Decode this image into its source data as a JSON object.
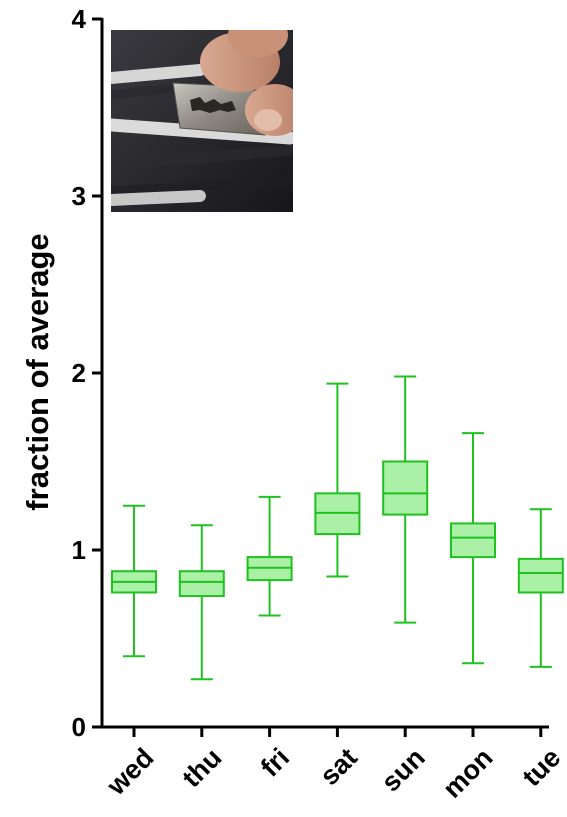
{
  "chart_data": {
    "type": "box",
    "ylabel": "fraction of average",
    "xlabel": "",
    "ylim": [
      0,
      4
    ],
    "yticks": [
      "0",
      "1",
      "2",
      "3",
      "4"
    ],
    "categories": [
      "wed",
      "thu",
      "fri",
      "sat",
      "sun",
      "mon",
      "tue"
    ],
    "boxes": [
      {
        "min": 0.4,
        "q1": 0.76,
        "median": 0.82,
        "q3": 0.88,
        "max": 1.25
      },
      {
        "min": 0.27,
        "q1": 0.74,
        "median": 0.82,
        "q3": 0.88,
        "max": 1.14
      },
      {
        "min": 0.63,
        "q1": 0.83,
        "median": 0.9,
        "q3": 0.96,
        "max": 1.3
      },
      {
        "min": 0.85,
        "q1": 1.09,
        "median": 1.21,
        "q3": 1.32,
        "max": 1.94
      },
      {
        "min": 0.59,
        "q1": 1.2,
        "median": 1.32,
        "q3": 1.5,
        "max": 1.98
      },
      {
        "min": 0.36,
        "q1": 0.96,
        "median": 1.07,
        "q3": 1.15,
        "max": 1.66
      },
      {
        "min": 0.34,
        "q1": 0.76,
        "median": 0.87,
        "q3": 0.95,
        "max": 1.23
      }
    ],
    "box_fill": "#aaf0a6",
    "box_stroke": "#1fc21f",
    "grid": false,
    "inset_image": "razor blade cutting lines of white powder on dark surface"
  }
}
